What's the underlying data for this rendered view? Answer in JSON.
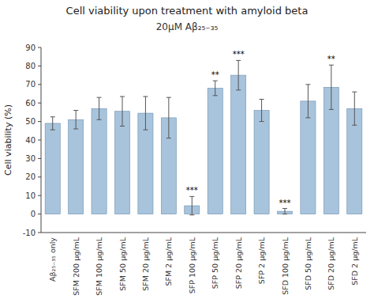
{
  "chart_data": {
    "type": "bar",
    "title": "Cell viability upon treatment with amyloid beta",
    "subtitle": "20μM Aβ₂₅₋₃₅",
    "ylabel": "Cell viability (%)",
    "categories": [
      "Aβ₂₅₋₃₅ only",
      "SFM 200 μg/mL",
      "SFM 100 μg/mL",
      "SFM 50 μg/mL",
      "SFM 20 μg/mL",
      "SFM 2 μg/mL",
      "SFP 100 μg/mL",
      "SFP 50 μg/mL",
      "SFP 20 μg/mL",
      "SFP 2 μg/mL",
      "SFD 100 μg/mL",
      "SFD 50 μg/mL",
      "SFD 20 μg/mL",
      "SFD 2 μg/mL"
    ],
    "values": [
      49,
      51,
      57,
      55.5,
      54.5,
      52,
      4.5,
      68,
      75,
      56,
      1.5,
      61,
      68.5,
      57
    ],
    "errors": [
      3.5,
      5,
      6,
      8,
      9,
      11,
      5,
      4,
      8,
      6,
      1.5,
      9,
      12,
      9
    ],
    "annotations": [
      null,
      null,
      null,
      null,
      null,
      null,
      "***",
      "**",
      "***",
      null,
      "***",
      null,
      "**",
      null
    ],
    "color": "#a8c4dc",
    "ylim": [
      -10,
      90
    ],
    "yticks": [
      -10,
      0,
      10,
      20,
      30,
      40,
      50,
      60,
      70,
      80,
      90
    ],
    "grid": false
  }
}
